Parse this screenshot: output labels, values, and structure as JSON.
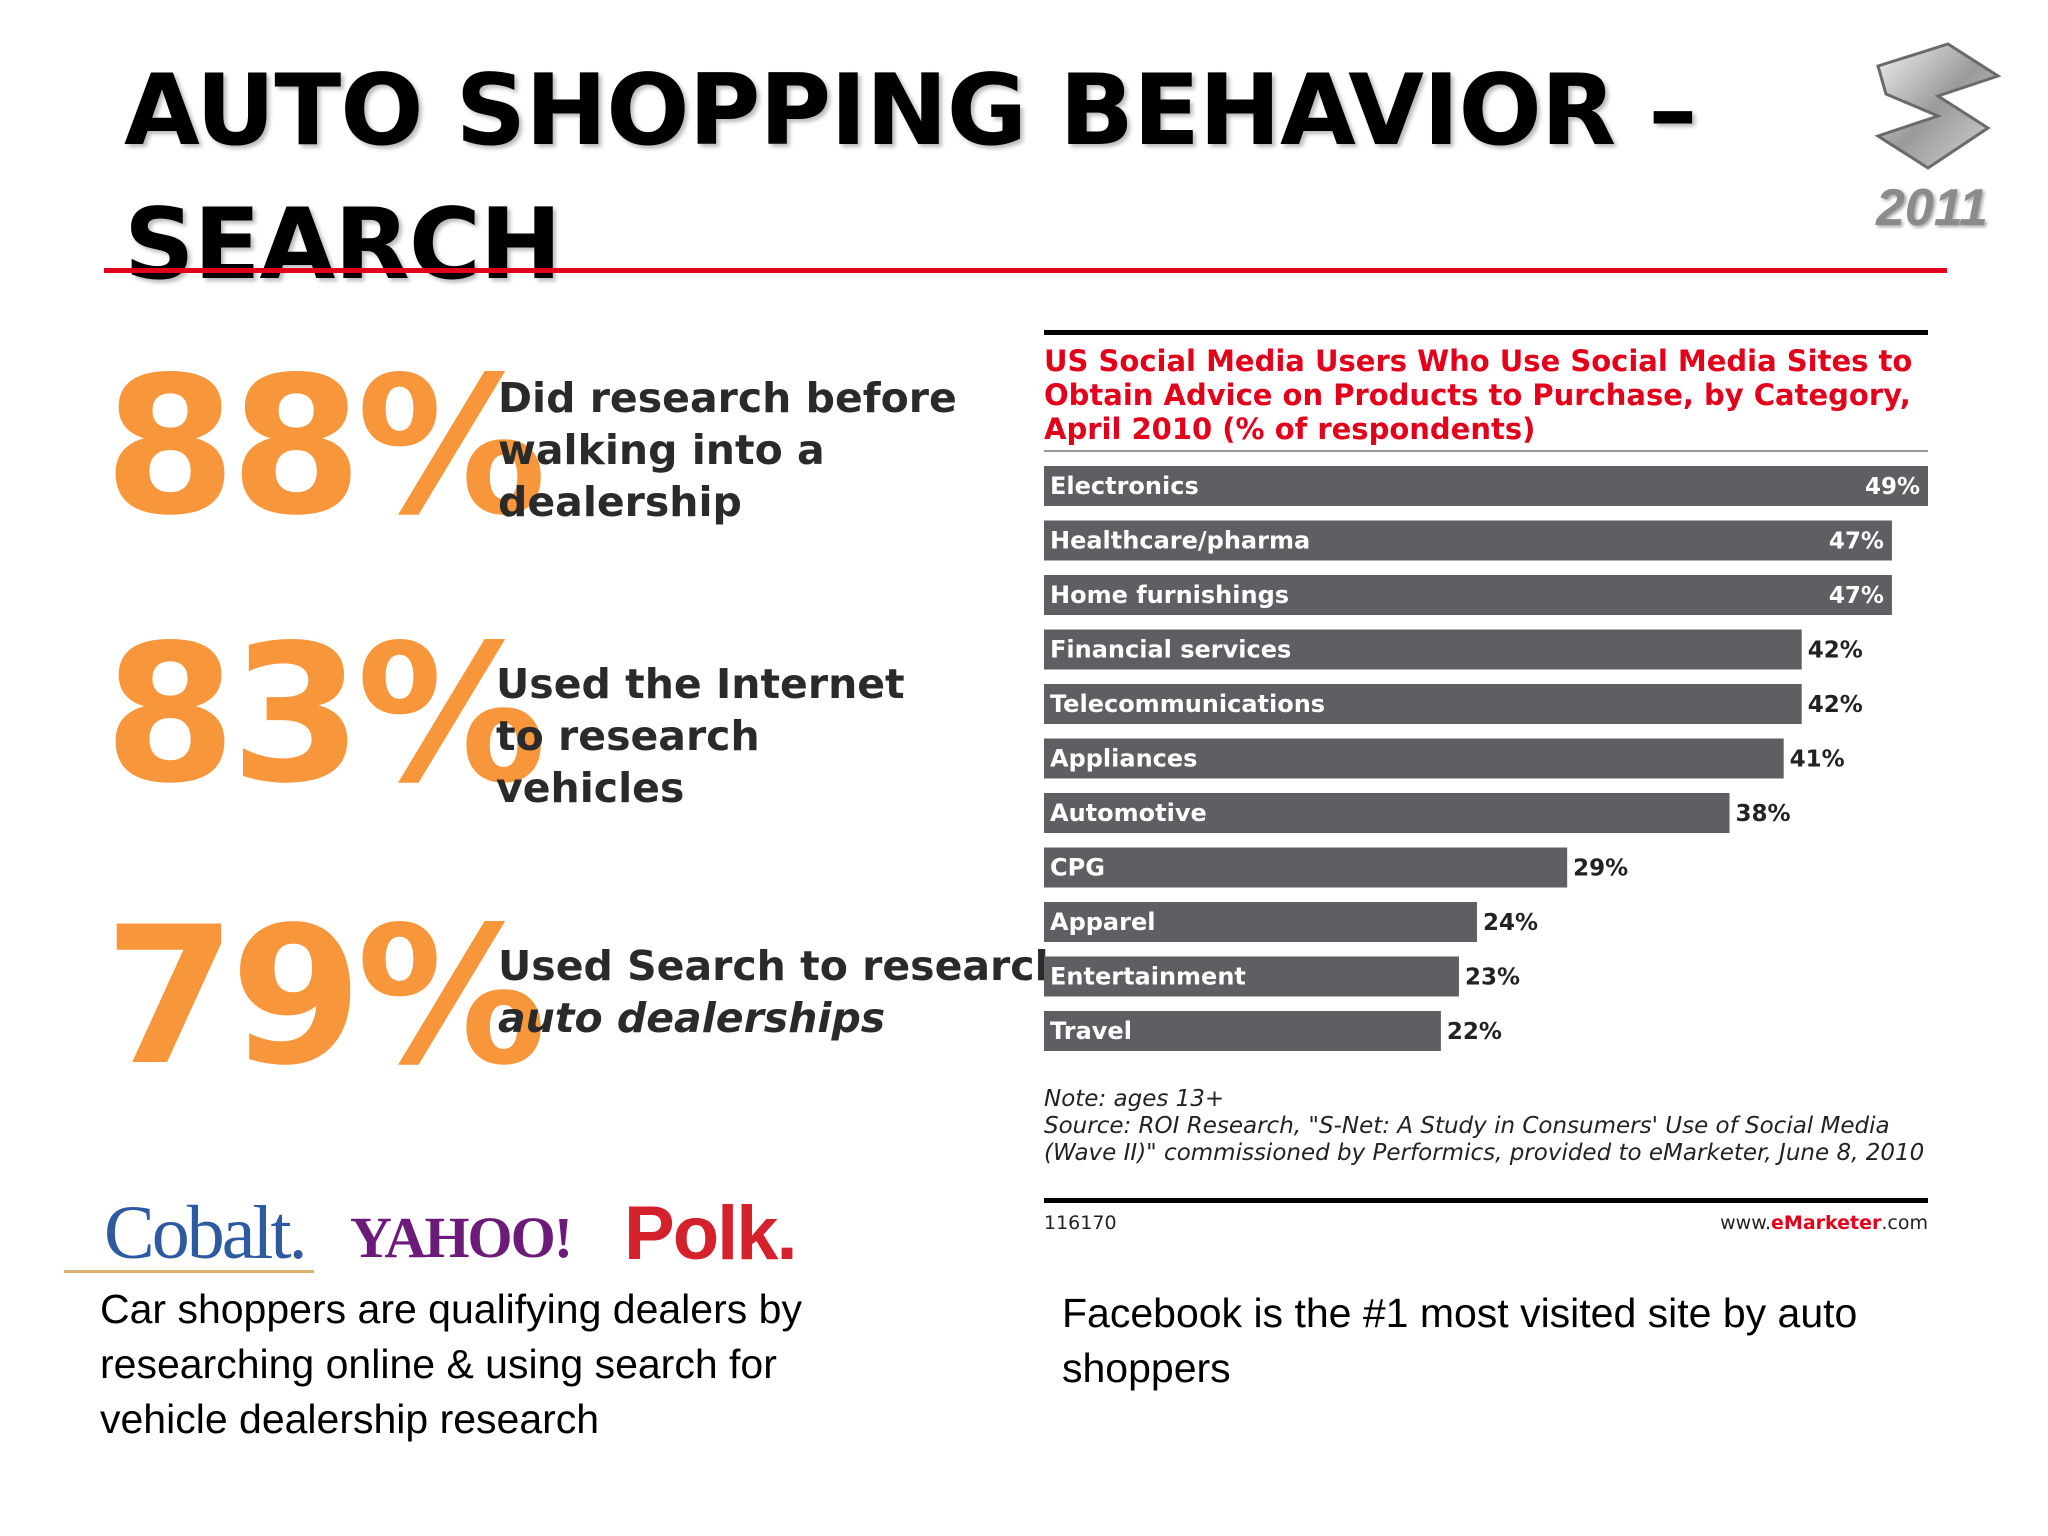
{
  "slide": {
    "title_line1": "AUTO SHOPPING BEHAVIOR –",
    "title_line2": "SEARCH",
    "logo_year": "2011"
  },
  "stats": [
    {
      "value": "88%",
      "text": "Did research before walking into a dealership"
    },
    {
      "value": "83%",
      "text": "Used the Internet to research vehicles"
    },
    {
      "value": "79%",
      "text_line1": "Used Search to research",
      "text_line2": "auto dealerships"
    }
  ],
  "logos": {
    "cobalt": "Cobalt.",
    "yahoo": "YAHOO!",
    "polk": "Polk."
  },
  "captions": {
    "left": "Car shoppers are qualifying dealers by researching online & using search for vehicle dealership research",
    "right": "Facebook is the #1 most visited site by auto shoppers"
  },
  "chart_data": {
    "type": "bar",
    "orientation": "horizontal",
    "title": "US Social Media Users Who Use Social Media Sites to Obtain Advice on Products to Purchase, by Category, April 2010 (% of respondents)",
    "categories": [
      "Electronics",
      "Healthcare/pharma",
      "Home furnishings",
      "Financial services",
      "Telecommunications",
      "Appliances",
      "Automotive",
      "CPG",
      "Apparel",
      "Entertainment",
      "Travel"
    ],
    "values": [
      49,
      47,
      47,
      42,
      42,
      41,
      38,
      29,
      24,
      23,
      22
    ],
    "value_suffix": "%",
    "xlim": [
      0,
      49
    ],
    "grid": false,
    "bar_color": "#5f5f63",
    "note": "Note: ages 13+",
    "source": "Source: ROI Research, \"S-Net: A Study in Consumers' Use of Social Media (Wave II)\" commissioned by Performics, provided to eMarketer, June 8, 2010",
    "chart_id": "116170",
    "brand_prefix": "www.",
    "brand_name": "eMarketer",
    "brand_suffix": ".com"
  }
}
